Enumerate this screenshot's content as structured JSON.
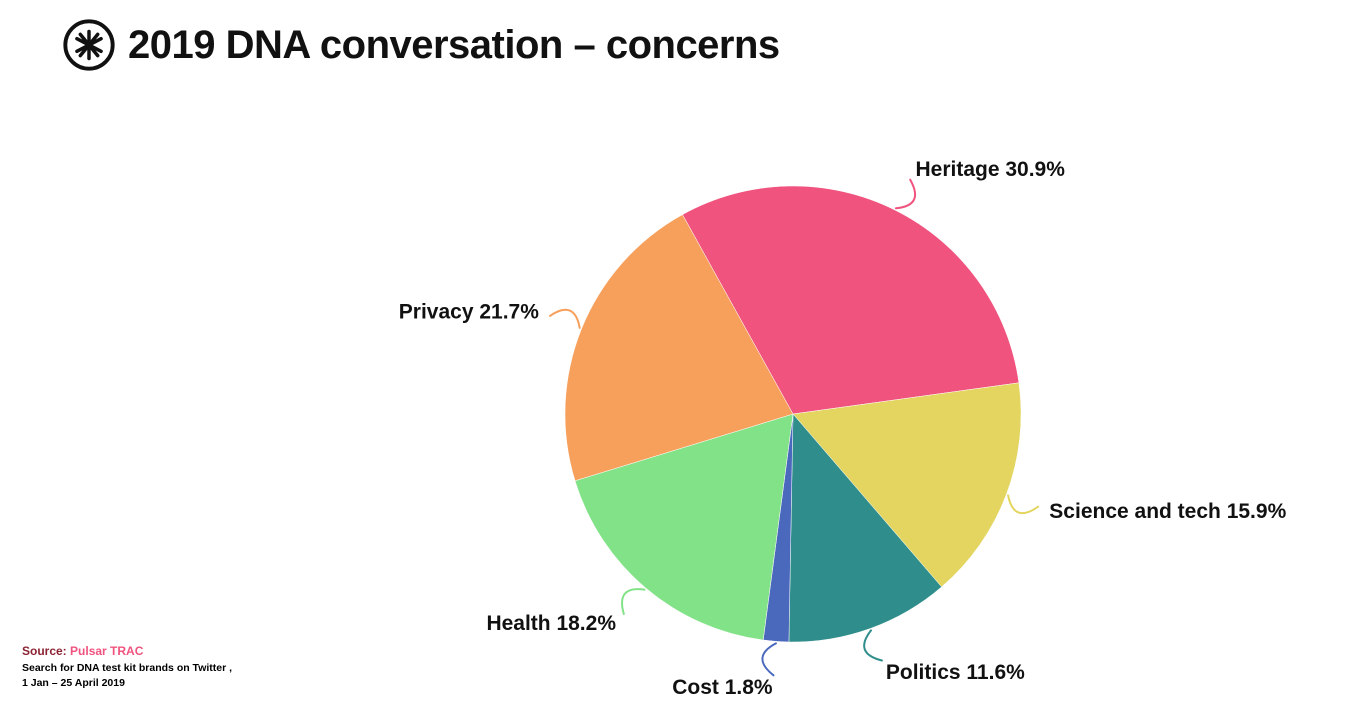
{
  "header": {
    "title": "2019 DNA conversation – concerns",
    "logo_icon": "pulsar-asterisk-icon"
  },
  "chart_data": {
    "type": "pie",
    "title": "2019 DNA conversation – concerns",
    "start_angle_deg": -29,
    "direction": "clockwise",
    "label_format": "{label} {value}%",
    "legend_position": "outside-labels",
    "slices": [
      {
        "label": "Heritage",
        "value": 30.9,
        "color": "#f0537e"
      },
      {
        "label": "Science and tech",
        "value": 15.9,
        "color": "#e3d55f"
      },
      {
        "label": "Politics",
        "value": 11.6,
        "color": "#2f8e8b"
      },
      {
        "label": "Cost",
        "value": 1.8,
        "color": "#4a69bd"
      },
      {
        "label": "Health",
        "value": 18.2,
        "color": "#82e287"
      },
      {
        "label": "Privacy",
        "value": 21.7,
        "color": "#f7a05c"
      }
    ]
  },
  "source": {
    "prefix": "Source:",
    "name": "Pulsar TRAC",
    "line2": "Search for DNA test kit brands on Twitter ,",
    "line3": "1 Jan – 25 April 2019"
  }
}
